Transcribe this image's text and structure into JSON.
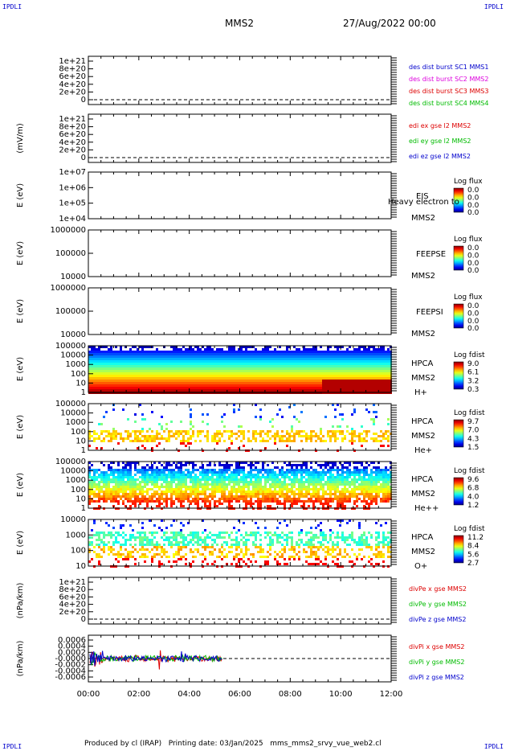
{
  "header": {
    "title": "MMS2",
    "date": "27/Aug/2022 00:00",
    "corner": "IPDLI"
  },
  "footer": {
    "text": "Produced by cl (IRAP)   Printing date: 03/Jan/2025   mms_mms2_srvy_vue_web2.cl"
  },
  "chart_data": [
    {
      "type": "line",
      "ylabel": "",
      "yticks": [
        "1e+21",
        "8e+20",
        "6e+20",
        "4e+20",
        "2e+20",
        "0"
      ],
      "series": [
        {
          "name": "des dist burst SC1 MMS1",
          "color": "#0000cc"
        },
        {
          "name": "des dist burst SC2 MMS2",
          "color": "#dd00dd"
        },
        {
          "name": "des dist burst SC3 MMS3",
          "color": "#dd0000"
        },
        {
          "name": "des dist burst SC4 MMS4",
          "color": "#00bb00"
        }
      ]
    },
    {
      "type": "line",
      "ylabel": "(mV/m)",
      "yticks": [
        "1e+21",
        "8e+20",
        "6e+20",
        "4e+20",
        "2e+20",
        "0"
      ],
      "series": [
        {
          "name": "edi ex gse l2 MMS2",
          "color": "#dd0000"
        },
        {
          "name": "edi ey gse l2 MMS2",
          "color": "#00bb00"
        },
        {
          "name": "edi ez gse l2 MMS2",
          "color": "#0000cc"
        }
      ]
    },
    {
      "type": "heatmap",
      "ylabel": "E (eV)",
      "yticks": [
        "1e+07",
        "1e+06",
        "1e+05",
        "1e+04"
      ],
      "labels": [
        "EIS",
        "MMS2"
      ],
      "overlay": "Heavy electron to",
      "colorbar": {
        "title": "Log flux",
        "ticks": [
          "0.0",
          "0.0",
          "0.0",
          "0.0"
        ]
      }
    },
    {
      "type": "heatmap",
      "ylabel": "E (eV)",
      "yticks": [
        "1000000",
        "100000",
        "10000"
      ],
      "labels": [
        "FEEPSE",
        "MMS2"
      ],
      "colorbar": {
        "title": "Log flux",
        "ticks": [
          "0.0",
          "0.0",
          "0.0",
          "0.0"
        ]
      }
    },
    {
      "type": "heatmap",
      "ylabel": "E (eV)",
      "yticks": [
        "1000000",
        "100000",
        "10000"
      ],
      "labels": [
        "FEEPSI",
        "MMS2"
      ],
      "colorbar": {
        "title": "Log flux",
        "ticks": [
          "0.0",
          "0.0",
          "0.0",
          "0.0"
        ]
      }
    },
    {
      "type": "heatmap",
      "ylabel": "E (eV)",
      "yticks": [
        "100000",
        "10000",
        "1000",
        "100",
        "10",
        "1"
      ],
      "labels": [
        "HPCA",
        "MMS2",
        "H+"
      ],
      "colorbar": {
        "title": "Log fdist",
        "ticks": [
          "9.0",
          "6.1",
          "3.2",
          "0.3"
        ]
      }
    },
    {
      "type": "heatmap",
      "ylabel": "E (eV)",
      "yticks": [
        "100000",
        "10000",
        "1000",
        "100",
        "10",
        "1"
      ],
      "labels": [
        "HPCA",
        "MMS2",
        "He+"
      ],
      "colorbar": {
        "title": "Log fdist",
        "ticks": [
          "9.7",
          "7.0",
          "4.3",
          "1.5"
        ]
      }
    },
    {
      "type": "heatmap",
      "ylabel": "E (eV)",
      "yticks": [
        "100000",
        "10000",
        "1000",
        "100",
        "10",
        "1"
      ],
      "labels": [
        "HPCA",
        "MMS2",
        "He++"
      ],
      "colorbar": {
        "title": "Log fdist",
        "ticks": [
          "9.6",
          "6.8",
          "4.0",
          "1.2"
        ]
      }
    },
    {
      "type": "heatmap",
      "ylabel": "E (eV)",
      "yticks": [
        "10000",
        "1000",
        "100",
        "10"
      ],
      "labels": [
        "HPCA",
        "MMS2",
        "O+"
      ],
      "colorbar": {
        "title": "Log fdist",
        "ticks": [
          "11.2",
          "8.4",
          "5.6",
          "2.7"
        ]
      }
    },
    {
      "type": "line",
      "ylabel": "(nPa/km)",
      "yticks": [
        "1e+21",
        "8e+20",
        "6e+20",
        "4e+20",
        "2e+20",
        "0"
      ],
      "series": [
        {
          "name": "divPe x gse MMS2",
          "color": "#dd0000"
        },
        {
          "name": "divPe y gse MMS2",
          "color": "#00bb00"
        },
        {
          "name": "divPe z gse MMS2",
          "color": "#0000cc"
        }
      ]
    },
    {
      "type": "line",
      "ylabel": "(nPa/km)",
      "yticks": [
        "0.0006",
        "0.0004",
        "0.0002",
        "-0.0000",
        "-0.0002",
        "-0.0004",
        "-0.0006"
      ],
      "series": [
        {
          "name": "divPi x gse MMS2",
          "color": "#dd0000"
        },
        {
          "name": "divPi y gse MMS2",
          "color": "#00bb00"
        },
        {
          "name": "divPi z gse MMS2",
          "color": "#0000cc"
        }
      ]
    }
  ],
  "xaxis": {
    "ticks": [
      "00:00",
      "02:00",
      "04:00",
      "06:00",
      "08:00",
      "10:00",
      "12:00"
    ]
  }
}
